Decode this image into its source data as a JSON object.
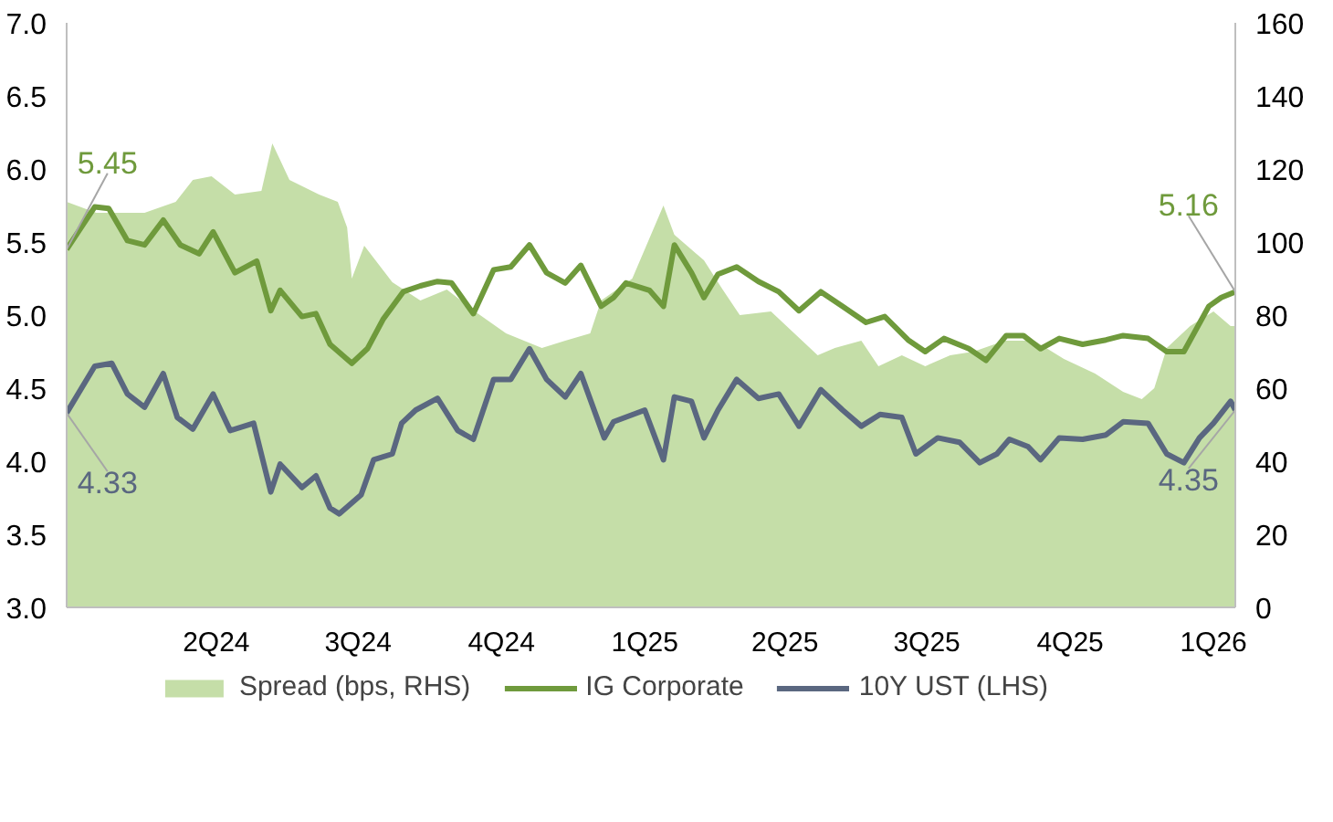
{
  "chart_data": {
    "type": "line",
    "xlim": [
      "2023-12-27",
      "2026-01-15"
    ],
    "xticks": [
      {
        "value": "2024-04-01",
        "label": "2Q24"
      },
      {
        "value": "2024-07-01",
        "label": "3Q24"
      },
      {
        "value": "2024-10-01",
        "label": "4Q24"
      },
      {
        "value": "2025-01-01",
        "label": "1Q25"
      },
      {
        "value": "2025-04-01",
        "label": "2Q25"
      },
      {
        "value": "2025-07-01",
        "label": "3Q25"
      },
      {
        "value": "2025-10-01",
        "label": "4Q25"
      },
      {
        "value": "2026-01-01",
        "label": "1Q26"
      }
    ],
    "ylim": [
      3.0,
      7.0
    ],
    "yticks": [
      {
        "value": 3,
        "label": "3.0"
      },
      3.5,
      {
        "value": 4,
        "label": "4.0"
      },
      4.5,
      {
        "value": 5,
        "label": "5.0"
      },
      5.5,
      {
        "value": 6,
        "label": "6.0"
      },
      6.5,
      {
        "value": 7,
        "label": "7.0"
      }
    ],
    "y2lim": [
      0,
      160
    ],
    "y2ticks": [
      0,
      20,
      40,
      60,
      80,
      100,
      120,
      140,
      160
    ],
    "grid": false,
    "legend": "bottom",
    "series": [
      {
        "name": "Spread (bps, RHS)",
        "type": "area",
        "axis": "y2",
        "color": "#c5dea8",
        "x": [
          "2023-12-27",
          "2024-01-15",
          "2024-02-15",
          "2024-03-06",
          "2024-03-17",
          "2024-03-29",
          "2024-04-13",
          "2024-04-30",
          "2024-05-07",
          "2024-05-18",
          "2024-06-06",
          "2024-06-18",
          "2024-06-24",
          "2024-06-27",
          "2024-07-05",
          "2024-07-23",
          "2024-08-10",
          "2024-08-27",
          "2024-09-14",
          "2024-10-04",
          "2024-10-27",
          "2024-11-11",
          "2024-11-27",
          "2024-12-04",
          "2024-12-24",
          "2025-01-13",
          "2025-01-20",
          "2025-02-08",
          "2025-02-20",
          "2025-03-03",
          "2025-03-23",
          "2025-04-07",
          "2025-04-22",
          "2025-05-03",
          "2025-05-20",
          "2025-05-31",
          "2025-06-15",
          "2025-06-30",
          "2025-07-16",
          "2025-07-31",
          "2025-08-20",
          "2025-09-08",
          "2025-09-27",
          "2025-10-17",
          "2025-11-04",
          "2025-11-16",
          "2025-11-24",
          "2025-12-02",
          "2025-12-17",
          "2026-01-01",
          "2026-01-12",
          "2026-01-15"
        ],
        "values": [
          111,
          108,
          108,
          111,
          117,
          118,
          113,
          114,
          127,
          117,
          113,
          111,
          104,
          90,
          99,
          89,
          84,
          87,
          81,
          75,
          71,
          73,
          75,
          84,
          90,
          110,
          102,
          95,
          87,
          80,
          81,
          75,
          69,
          71,
          73,
          66,
          69,
          66,
          69,
          70,
          73,
          73,
          68,
          64,
          59,
          57,
          60,
          71,
          77,
          81,
          77,
          77
        ]
      },
      {
        "name": "IG Corporate",
        "color": "#6f9a3c",
        "x": [
          "2023-12-27",
          "2024-01-14",
          "2024-01-23",
          "2024-02-04",
          "2024-02-15",
          "2024-02-27",
          "2024-03-09",
          "2024-03-21",
          "2024-03-30",
          "2024-04-13",
          "2024-04-27",
          "2024-05-06",
          "2024-05-12",
          "2024-05-26",
          "2024-06-04",
          "2024-06-13",
          "2024-06-27",
          "2024-07-07",
          "2024-07-17",
          "2024-07-30",
          "2024-08-10",
          "2024-08-21",
          "2024-08-30",
          "2024-09-13",
          "2024-09-26",
          "2024-10-07",
          "2024-10-19",
          "2024-10-30",
          "2024-11-11",
          "2024-11-21",
          "2024-12-04",
          "2024-12-12",
          "2024-12-20",
          "2025-01-04",
          "2025-01-13",
          "2025-01-20",
          "2025-01-31",
          "2025-02-08",
          "2025-02-17",
          "2025-03-01",
          "2025-03-15",
          "2025-03-28",
          "2025-04-10",
          "2025-04-24",
          "2025-05-08",
          "2025-05-23",
          "2025-06-04",
          "2025-06-19",
          "2025-06-30",
          "2025-07-12",
          "2025-07-28",
          "2025-08-08",
          "2025-08-21",
          "2025-09-01",
          "2025-09-12",
          "2025-09-24",
          "2025-10-09",
          "2025-10-24",
          "2025-11-04",
          "2025-11-20",
          "2025-12-02",
          "2025-12-13",
          "2025-12-29",
          "2026-01-06",
          "2026-01-15"
        ],
        "values": [
          5.45,
          5.74,
          5.73,
          5.51,
          5.48,
          5.65,
          5.48,
          5.42,
          5.57,
          5.29,
          5.37,
          5.03,
          5.17,
          4.99,
          5.01,
          4.8,
          4.67,
          4.77,
          4.97,
          5.16,
          5.2,
          5.23,
          5.22,
          5.01,
          5.31,
          5.33,
          5.48,
          5.29,
          5.22,
          5.34,
          5.06,
          5.12,
          5.22,
          5.17,
          5.06,
          5.48,
          5.29,
          5.12,
          5.28,
          5.33,
          5.23,
          5.16,
          5.03,
          5.16,
          5.06,
          4.95,
          4.99,
          4.83,
          4.75,
          4.84,
          4.77,
          4.69,
          4.86,
          4.86,
          4.77,
          4.84,
          4.8,
          4.83,
          4.86,
          4.84,
          4.75,
          4.75,
          5.06,
          5.12,
          5.16
        ]
      },
      {
        "name": "10Y UST (LHS)",
        "color": "#5a6780",
        "x": [
          "2023-12-27",
          "2024-01-14",
          "2024-01-25",
          "2024-02-04",
          "2024-02-15",
          "2024-02-27",
          "2024-03-07",
          "2024-03-17",
          "2024-03-30",
          "2024-04-10",
          "2024-04-25",
          "2024-05-06",
          "2024-05-12",
          "2024-05-26",
          "2024-06-04",
          "2024-06-13",
          "2024-06-19",
          "2024-07-03",
          "2024-07-11",
          "2024-07-23",
          "2024-07-29",
          "2024-08-07",
          "2024-08-21",
          "2024-09-03",
          "2024-09-13",
          "2024-09-26",
          "2024-10-07",
          "2024-10-19",
          "2024-10-30",
          "2024-11-11",
          "2024-11-21",
          "2024-12-06",
          "2024-12-12",
          "2025-01-01",
          "2025-01-13",
          "2025-01-20",
          "2025-01-31",
          "2025-02-08",
          "2025-02-17",
          "2025-03-01",
          "2025-03-15",
          "2025-03-28",
          "2025-04-10",
          "2025-04-24",
          "2025-05-08",
          "2025-05-20",
          "2025-06-01",
          "2025-06-15",
          "2025-06-24",
          "2025-07-08",
          "2025-07-22",
          "2025-08-04",
          "2025-08-15",
          "2025-08-23",
          "2025-09-04",
          "2025-09-12",
          "2025-09-24",
          "2025-10-09",
          "2025-10-24",
          "2025-11-04",
          "2025-11-20",
          "2025-12-02",
          "2025-12-13",
          "2025-12-23",
          "2026-01-01",
          "2026-01-12",
          "2026-01-15"
        ],
        "values": [
          4.33,
          4.65,
          4.67,
          4.46,
          4.37,
          4.6,
          4.3,
          4.22,
          4.46,
          4.21,
          4.26,
          3.79,
          3.98,
          3.82,
          3.9,
          3.68,
          3.64,
          3.77,
          4.01,
          4.05,
          4.26,
          4.35,
          4.43,
          4.21,
          4.15,
          4.56,
          4.56,
          4.77,
          4.56,
          4.44,
          4.6,
          4.16,
          4.27,
          4.35,
          4.01,
          4.44,
          4.41,
          4.16,
          4.35,
          4.56,
          4.43,
          4.46,
          4.24,
          4.49,
          4.35,
          4.24,
          4.32,
          4.3,
          4.05,
          4.16,
          4.13,
          3.99,
          4.05,
          4.15,
          4.1,
          4.01,
          4.16,
          4.15,
          4.18,
          4.27,
          4.26,
          4.05,
          3.99,
          4.16,
          4.26,
          4.41,
          4.35
        ]
      }
    ],
    "annotations": [
      {
        "text": "5.45",
        "x": "2023-12-27",
        "y": 5.45
      },
      {
        "text": "4.33",
        "x": "2023-12-27",
        "y": 4.33
      },
      {
        "text": "5.16",
        "x": "2026-01-15",
        "y": 5.16
      },
      {
        "text": "4.35",
        "x": "2026-01-15",
        "y": 4.35
      }
    ]
  }
}
